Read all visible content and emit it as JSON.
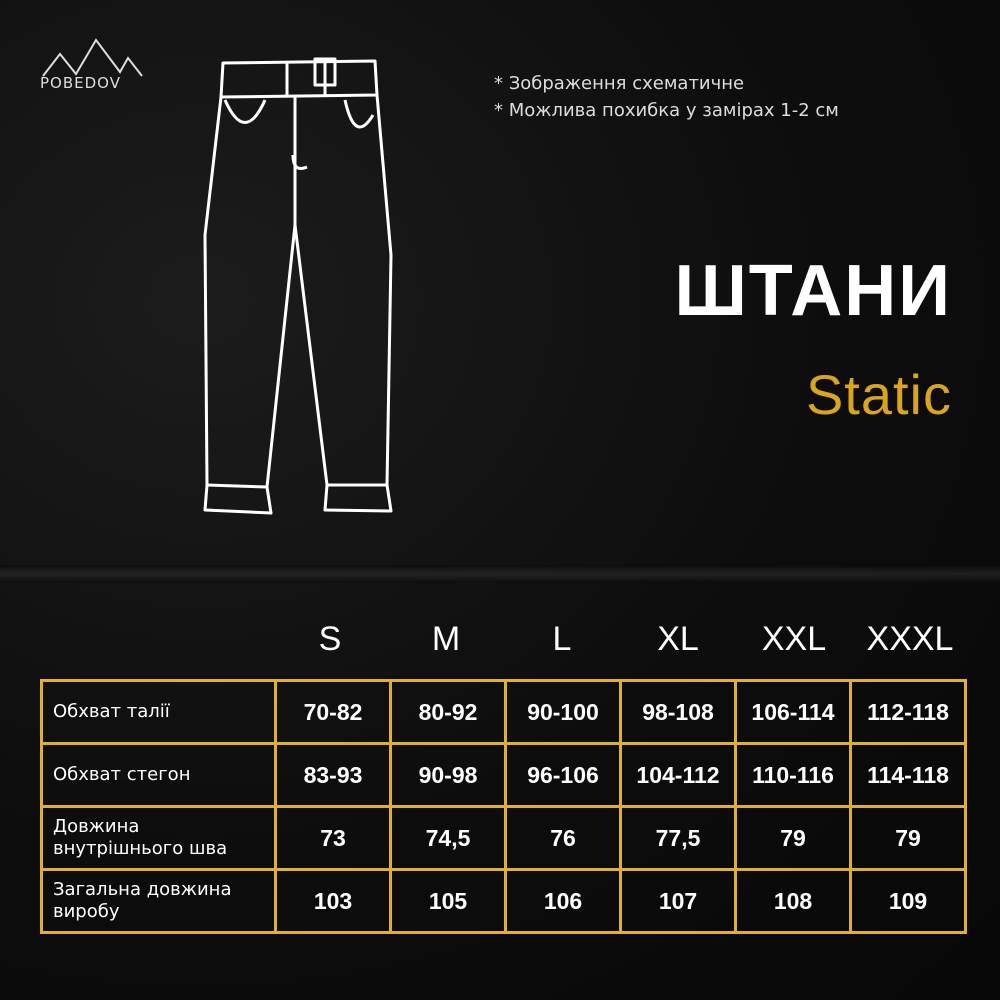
{
  "brand": {
    "logo_text": "POBEDOV"
  },
  "notes": [
    "* Зображення схематичне",
    "* Можлива похибка у замірах 1-2 см"
  ],
  "title": "ШТАНИ",
  "subtitle": "Static",
  "colors": {
    "accent": "#d9a520",
    "border": "#e0b030",
    "background": "#0b0b0b"
  },
  "table": {
    "sizes": [
      "S",
      "M",
      "L",
      "XL",
      "XXL",
      "XXXL"
    ],
    "rows": [
      {
        "label": "Обхват талії",
        "values": [
          "70-82",
          "80-92",
          "90-100",
          "98-108",
          "106-114",
          "112-118"
        ]
      },
      {
        "label": "Обхват стегон",
        "values": [
          "83-93",
          "90-98",
          "96-106",
          "104-112",
          "110-116",
          "114-118"
        ]
      },
      {
        "label": "Довжина внутрішнього шва",
        "values": [
          "73",
          "74,5",
          "76",
          "77,5",
          "79",
          "79"
        ]
      },
      {
        "label": "Загальна довжина виробу",
        "values": [
          "103",
          "105",
          "106",
          "107",
          "108",
          "109"
        ]
      }
    ]
  }
}
